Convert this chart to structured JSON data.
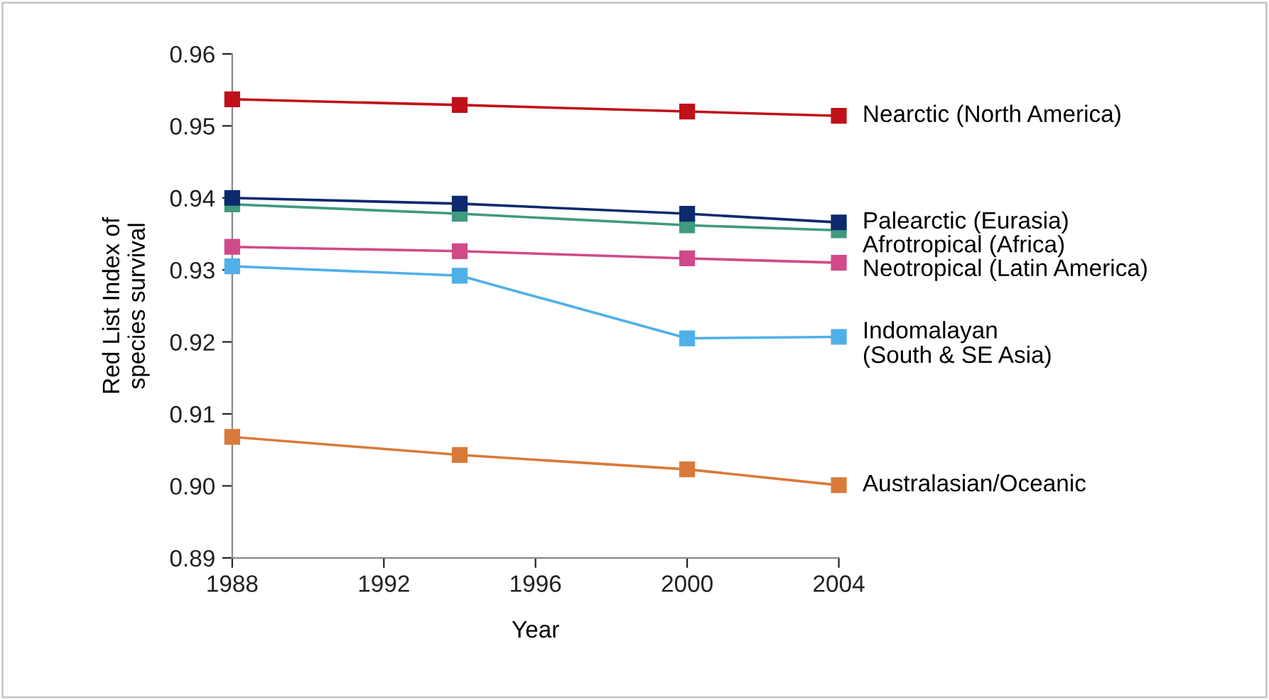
{
  "chart_data": {
    "type": "line",
    "xlabel": "Year",
    "ylabel": "Red List Index of\nspecies survival",
    "x": [
      1988,
      1994,
      2000,
      2004
    ],
    "xlim": [
      1988,
      2004
    ],
    "xticks": [
      1988,
      1992,
      1996,
      2000,
      2004
    ],
    "ylim": [
      0.89,
      0.96
    ],
    "yticks": [
      0.89,
      {
        "value": 0.9,
        "label": "0.90"
      },
      0.91,
      0.92,
      0.93,
      0.94,
      0.95,
      0.96
    ],
    "marker": "square",
    "line_style": "solid",
    "grid": false,
    "legend": false,
    "series": [
      {
        "name": "Nearctic (North America)",
        "color": "#c0101a",
        "values": [
          0.9537,
          0.9529,
          0.952,
          0.9514
        ]
      },
      {
        "name": "Palearctic (Eurasia)",
        "color": "#0d2a6e",
        "values": [
          0.94,
          0.9392,
          0.9378,
          0.9366
        ]
      },
      {
        "name": "Afrotropical (Africa)",
        "color": "#3f9a80",
        "values": [
          0.9391,
          0.9378,
          0.9362,
          0.9355
        ]
      },
      {
        "name": "Neotropical (Latin America)",
        "color": "#d04a8a",
        "values": [
          0.9332,
          0.9326,
          0.9316,
          0.931
        ]
      },
      {
        "name": "Indomalayan\n(South & SE Asia)",
        "color": "#4fb0e8",
        "values": [
          0.9305,
          0.9292,
          0.9205,
          0.9207
        ]
      },
      {
        "name": "Australasian/Oceanic",
        "color": "#d97a3a",
        "values": [
          0.9068,
          0.9043,
          0.9023,
          0.9001
        ]
      }
    ]
  }
}
